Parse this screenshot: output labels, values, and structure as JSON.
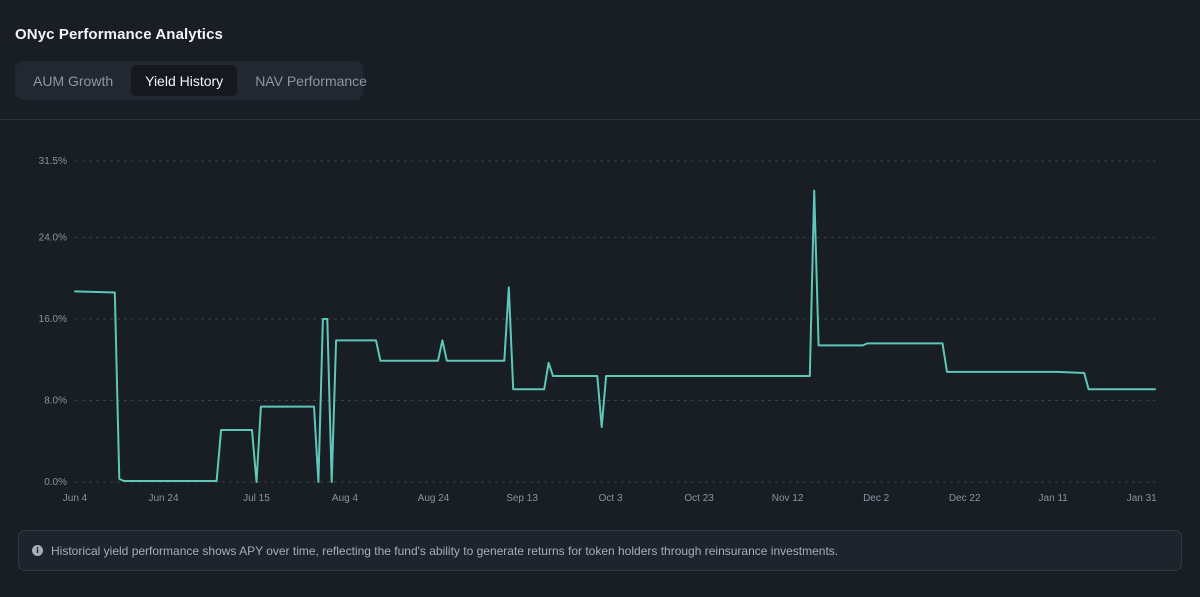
{
  "page": {
    "title": "ONyc Performance Analytics"
  },
  "tabs": [
    {
      "label": "AUM Growth",
      "active": false
    },
    {
      "label": "Yield History",
      "active": true
    },
    {
      "label": "NAV Performance",
      "active": false
    }
  ],
  "info": {
    "icon": "info-icon",
    "text": "Historical yield performance shows APY over time, reflecting the fund's ability to generate returns for token holders through reinsurance investments."
  },
  "colors": {
    "line": "#5ec7b8",
    "grid": "#3a414c",
    "background": "#191d24"
  },
  "chart_data": {
    "type": "line",
    "title": "",
    "xlabel": "",
    "ylabel": "",
    "y_unit": "%",
    "ylim": [
      0,
      31.5
    ],
    "yticks": [
      0,
      8,
      16,
      24,
      31.5
    ],
    "ytick_labels": [
      "0.0%",
      "8.0%",
      "16.0%",
      "24.0%",
      "31.5%"
    ],
    "xlim": [
      "2024-06-04",
      "2025-02-03"
    ],
    "xticks": [
      "2024-06-04",
      "2024-06-24",
      "2024-07-15",
      "2024-08-04",
      "2024-08-24",
      "2024-09-13",
      "2024-10-03",
      "2024-10-23",
      "2024-11-12",
      "2024-12-02",
      "2024-12-22",
      "2025-01-11",
      "2025-01-31"
    ],
    "xtick_labels": [
      "Jun 4",
      "Jun 24",
      "Jul 15",
      "Aug 4",
      "Aug 24",
      "Sep 13",
      "Oct 3",
      "Oct 23",
      "Nov 12",
      "Dec 2",
      "Dec 22",
      "Jan 11",
      "Jan 31"
    ],
    "grid": true,
    "legend": "none",
    "series": [
      {
        "name": "",
        "points": [
          [
            "2024-06-04",
            18.7
          ],
          [
            "2024-06-13",
            18.6
          ],
          [
            "2024-06-14",
            0.3
          ],
          [
            "2024-06-15",
            0.1
          ],
          [
            "2024-07-06",
            0.1
          ],
          [
            "2024-07-07",
            5.1
          ],
          [
            "2024-07-14",
            5.1
          ],
          [
            "2024-07-15",
            0.0
          ],
          [
            "2024-07-16",
            7.4
          ],
          [
            "2024-07-28",
            7.4
          ],
          [
            "2024-07-29",
            0.0
          ],
          [
            "2024-07-30",
            16.0
          ],
          [
            "2024-07-31",
            16.0
          ],
          [
            "2024-08-01",
            0.0
          ],
          [
            "2024-08-02",
            13.9
          ],
          [
            "2024-08-11",
            13.9
          ],
          [
            "2024-08-12",
            11.9
          ],
          [
            "2024-08-25",
            11.9
          ],
          [
            "2024-08-26",
            13.9
          ],
          [
            "2024-08-27",
            11.9
          ],
          [
            "2024-09-09",
            11.9
          ],
          [
            "2024-09-10",
            19.1
          ],
          [
            "2024-09-11",
            9.1
          ],
          [
            "2024-09-18",
            9.1
          ],
          [
            "2024-09-19",
            11.7
          ],
          [
            "2024-09-20",
            10.4
          ],
          [
            "2024-09-30",
            10.4
          ],
          [
            "2024-10-01",
            5.4
          ],
          [
            "2024-10-02",
            10.4
          ],
          [
            "2024-11-17",
            10.4
          ],
          [
            "2024-11-18",
            28.6
          ],
          [
            "2024-11-19",
            13.4
          ],
          [
            "2024-11-29",
            13.4
          ],
          [
            "2024-11-30",
            13.6
          ],
          [
            "2024-12-17",
            13.6
          ],
          [
            "2024-12-18",
            10.8
          ],
          [
            "2025-01-12",
            10.8
          ],
          [
            "2025-01-18",
            10.7
          ],
          [
            "2025-01-19",
            9.1
          ],
          [
            "2025-02-03",
            9.1
          ]
        ]
      }
    ]
  }
}
